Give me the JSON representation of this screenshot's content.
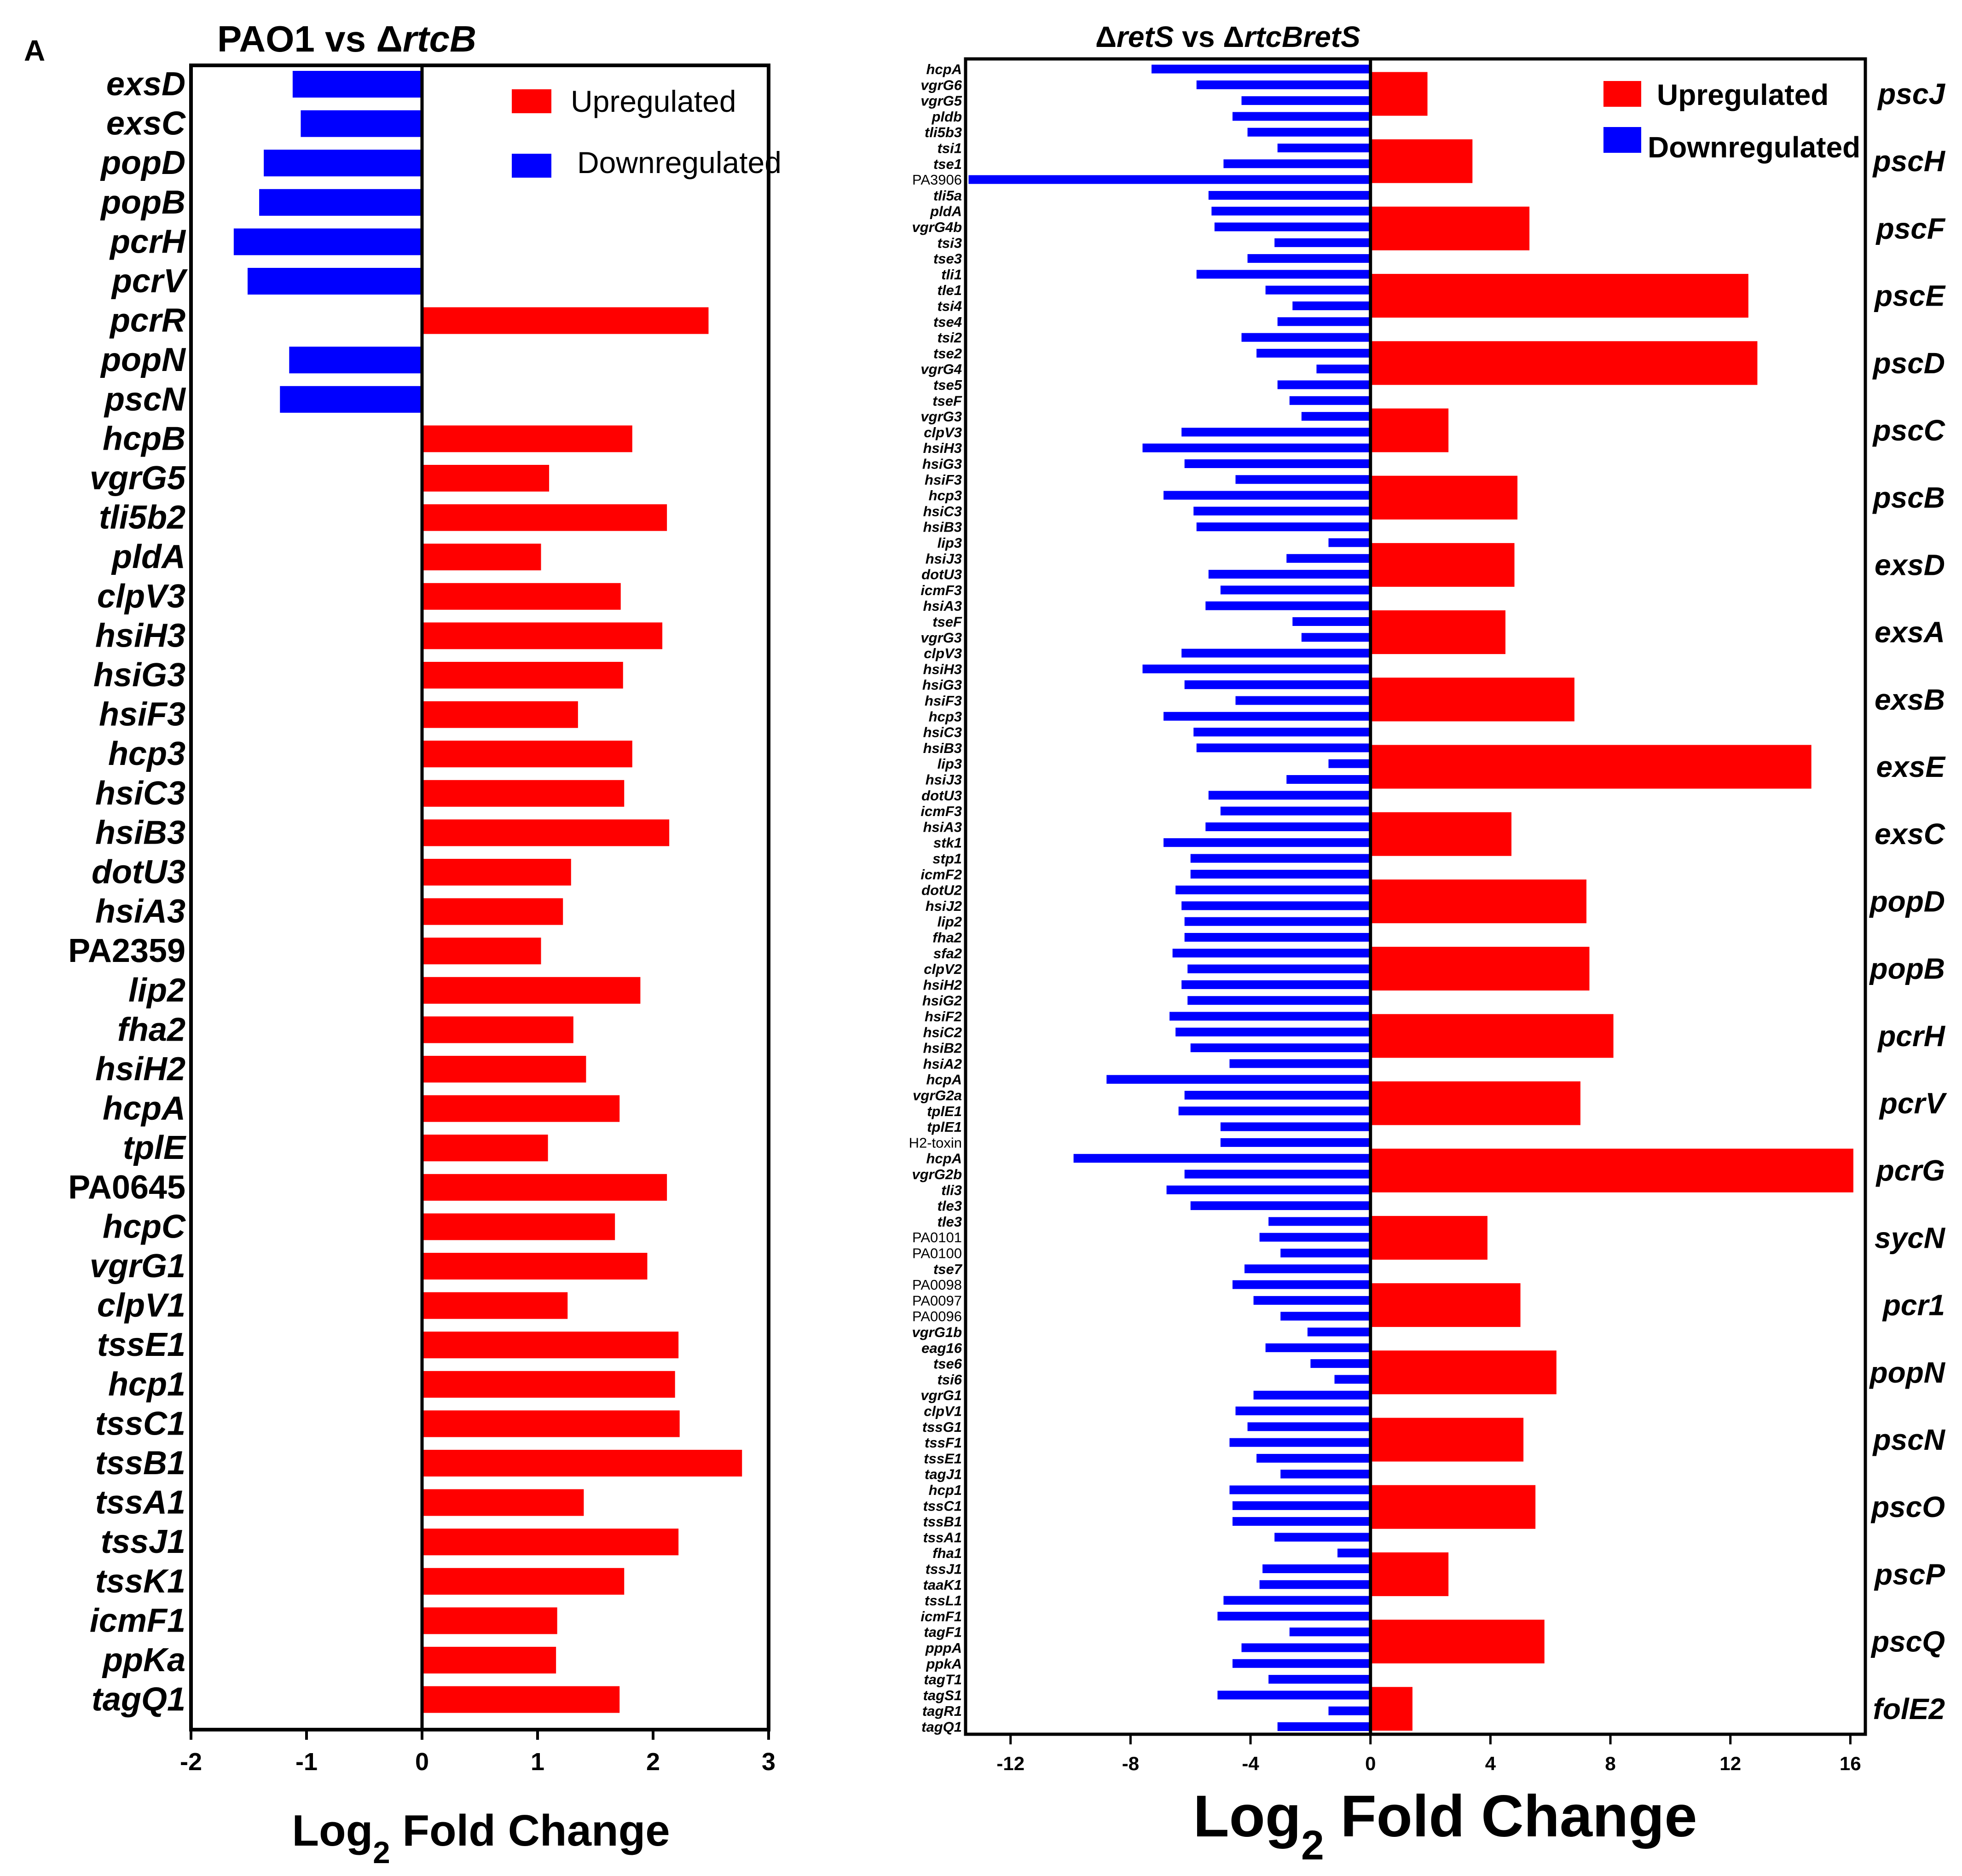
{
  "figure": {
    "panel_label": "A"
  },
  "colors": {
    "up": "#ff0000",
    "down": "#0000ff",
    "axis": "#000000"
  },
  "chart_data": [
    {
      "type": "bar",
      "orientation": "horizontal",
      "title": "PAO1 vs ΔrtcB",
      "title_parts": [
        "PAO1 vs Δ",
        "rtcB"
      ],
      "xlabel": "Log2 Fold Change",
      "xlabel_parts": [
        "Log",
        "2",
        " Fold Change"
      ],
      "xlim": [
        -2,
        3
      ],
      "xticks": [
        -2,
        -1,
        0,
        1,
        2,
        3
      ],
      "legend": {
        "position": "top-right",
        "entries": [
          {
            "label": "Upregulated",
            "color": "#ff0000"
          },
          {
            "label": "Downregulated",
            "color": "#0000ff"
          }
        ]
      },
      "categories": [
        "exsD",
        "exsC",
        "popD",
        "popB",
        "pcrH",
        "pcrV",
        "pcrR",
        "popN",
        "pscN",
        "hcpB",
        "vgrG5",
        "tli5b2",
        "pldA",
        "clpV3",
        "hsiH3",
        "hsiG3",
        "hsiF3",
        "hcp3",
        "hsiC3",
        "hsiB3",
        "dotU3",
        "hsiA3",
        "PA2359",
        "lip2",
        "fha2",
        "hsiH2",
        "hcpA",
        "tplE",
        "PA0645",
        "hcpC",
        "vgrG1",
        "clpV1",
        "tssE1",
        "hcp1",
        "tssC1",
        "tssB1",
        "tssA1",
        "tssJ1",
        "tssK1",
        "icmF1",
        "ppKa",
        "tagQ1"
      ],
      "values": [
        -1.12,
        -1.05,
        -1.37,
        -1.41,
        -1.63,
        -1.51,
        2.48,
        -1.15,
        -1.23,
        1.82,
        1.1,
        2.12,
        1.03,
        1.72,
        2.08,
        1.74,
        1.35,
        1.82,
        1.75,
        2.14,
        1.29,
        1.22,
        1.03,
        1.89,
        1.31,
        1.42,
        1.71,
        1.09,
        2.12,
        1.67,
        1.95,
        1.26,
        2.22,
        2.19,
        2.23,
        2.77,
        1.4,
        2.22,
        1.75,
        1.17,
        1.16,
        1.71
      ]
    },
    {
      "type": "bar",
      "orientation": "horizontal",
      "title": "ΔretS vs ΔrtcBretS",
      "title_parts": [
        "Δ",
        "retS",
        " vs Δ",
        "rtcBretS"
      ],
      "xlabel": "Log2 Fold Change",
      "xlabel_parts": [
        "Log",
        "2",
        " Fold Change"
      ],
      "xlim": [
        -13.5,
        16.5
      ],
      "xticks": [
        -12,
        -8,
        -4,
        0,
        4,
        8,
        12,
        16
      ],
      "legend": {
        "position": "top-right",
        "entries": [
          {
            "label": "Upregulated",
            "color": "#ff0000"
          },
          {
            "label": "Downregulated",
            "color": "#0000ff"
          }
        ]
      },
      "up_series": {
        "name": "Upregulated",
        "categories": [
          "pscJ",
          "pscH",
          "pscF",
          "pscE",
          "pscD",
          "pscC",
          "pscB",
          "exsD",
          "exsA",
          "exsB",
          "exsE",
          "exsC",
          "popD",
          "popB",
          "pcrH",
          "pcrV",
          "pcrG",
          "sycN",
          "pcr1",
          "popN",
          "pscN",
          "pscO",
          "pscP",
          "pscQ",
          "folE2"
        ],
        "values": [
          1.9,
          3.4,
          5.3,
          12.6,
          12.9,
          2.6,
          4.9,
          4.8,
          4.5,
          6.8,
          14.7,
          4.7,
          7.2,
          7.3,
          8.1,
          7.0,
          16.1,
          3.9,
          5.0,
          6.2,
          5.1,
          5.5,
          2.6,
          5.8,
          1.4
        ]
      },
      "down_series": {
        "name": "Downregulated",
        "categories": [
          "hcpA",
          "vgrG6",
          "vgrG5",
          "pldb",
          "tli5b3",
          "tsi1",
          "tse1",
          "PA3906",
          "tli5a",
          "pldA",
          "vgrG4b",
          "tsi3",
          "tse3",
          "tli1",
          "tle1",
          "tsi4",
          "tse4",
          "tsi2",
          "tse2",
          "vgrG4",
          "tse5",
          "tseF",
          "vgrG3",
          "clpV3",
          "hsiH3",
          "hsiG3",
          "hsiF3",
          "hcp3",
          "hsiC3",
          "hsiB3",
          "lip3",
          "hsiJ3",
          "dotU3",
          "icmF3",
          "hsiA3",
          "tseF",
          "vgrG3",
          "clpV3",
          "hsiH3",
          "hsiG3",
          "hsiF3",
          "hcp3",
          "hsiC3",
          "hsiB3",
          "lip3",
          "hsiJ3",
          "dotU3",
          "icmF3",
          "hsiA3",
          "stk1",
          "stp1",
          "icmF2",
          "dotU2",
          "hsiJ2",
          "lip2",
          "fha2",
          "sfa2",
          "clpV2",
          "hsiH2",
          "hsiG2",
          "hsiF2",
          "hsiC2",
          "hsiB2",
          "hsiA2",
          "hcpA",
          "vgrG2a",
          "tplE1",
          "tplE1",
          "H2-toxin",
          "hcpA",
          "vgrG2b",
          "tli3",
          "tle3",
          "tle3",
          "PA0101",
          "PA0100",
          "tse7",
          "PA0098",
          "PA0097",
          "PA0096",
          "vgrG1b",
          "eag16",
          "tse6",
          "tsi6",
          "vgrG1",
          "clpV1",
          "tssG1",
          "tssF1",
          "tssE1",
          "tagJ1",
          "hcp1",
          "tssC1",
          "tssB1",
          "tssA1",
          "fha1",
          "tssJ1",
          "taaK1",
          "tssL1",
          "icmF1",
          "tagF1",
          "pppA",
          "ppkA",
          "tagT1",
          "tagS1",
          "tagR1",
          "tagQ1"
        ],
        "values": [
          -7.3,
          -5.8,
          -4.3,
          -4.6,
          -4.1,
          -3.1,
          -4.9,
          -13.4,
          -5.4,
          -5.3,
          -5.2,
          -3.2,
          -4.1,
          -5.8,
          -3.5,
          -2.6,
          -3.1,
          -4.3,
          -3.8,
          -1.8,
          -3.1,
          -2.7,
          -2.3,
          -6.3,
          -7.6,
          -6.2,
          -4.5,
          -6.9,
          -5.9,
          -5.8,
          -1.4,
          -2.8,
          -5.4,
          -5.0,
          -5.5,
          -2.6,
          -2.3,
          -6.3,
          -7.6,
          -6.2,
          -4.5,
          -6.9,
          -5.9,
          -5.8,
          -1.4,
          -2.8,
          -5.4,
          -5.0,
          -5.5,
          -6.9,
          -6.0,
          -6.0,
          -6.5,
          -6.3,
          -6.2,
          -6.2,
          -6.6,
          -6.1,
          -6.3,
          -6.1,
          -6.7,
          -6.5,
          -6.0,
          -4.7,
          -8.8,
          -6.2,
          -6.4,
          -5.0,
          -5.0,
          -9.9,
          -6.2,
          -6.8,
          -6.0,
          -3.4,
          -3.7,
          -3.0,
          -4.2,
          -4.6,
          -3.9,
          -3.0,
          -2.1,
          -3.5,
          -2.0,
          -1.2,
          -3.9,
          -4.5,
          -4.1,
          -4.7,
          -3.8,
          -3.0,
          -4.7,
          -4.6,
          -4.6,
          -3.2,
          -1.1,
          -3.6,
          -3.7,
          -4.9,
          -5.1,
          -2.7,
          -4.3,
          -4.6,
          -3.4,
          -5.1,
          -1.4,
          -3.1
        ]
      }
    }
  ]
}
